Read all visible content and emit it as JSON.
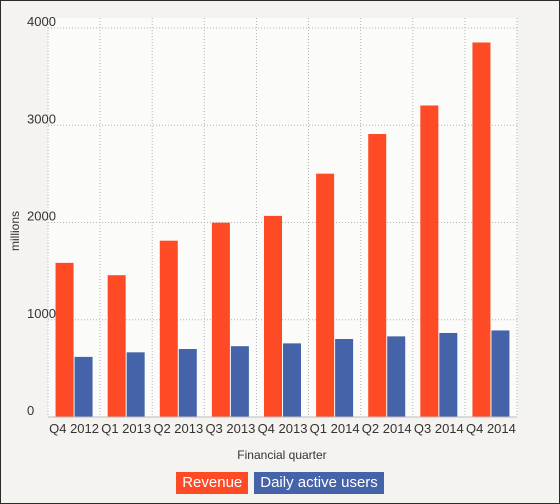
{
  "chart_data": {
    "type": "bar",
    "categories": [
      "Q4 2012",
      "Q1 2013",
      "Q2 2013",
      "Q3 2013",
      "Q4 2013",
      "Q1 2014",
      "Q2 2014",
      "Q3 2014",
      "Q4 2014"
    ],
    "series": [
      {
        "name": "Revenue",
        "color": "#ff4a26",
        "values": [
          1585,
          1458,
          1813,
          1998,
          2068,
          2502,
          2910,
          3203,
          3851
        ]
      },
      {
        "name": "Daily active users",
        "color": "#4563a8",
        "values": [
          618,
          665,
          699,
          728,
          757,
          802,
          829,
          864,
          890
        ]
      }
    ],
    "xlabel": "Financial quarter",
    "ylabel": "millions",
    "ylim": [
      0,
      4000
    ],
    "yticks": [
      0,
      1000,
      2000,
      3000,
      4000
    ],
    "grid": true,
    "legend_position": "bottom"
  }
}
